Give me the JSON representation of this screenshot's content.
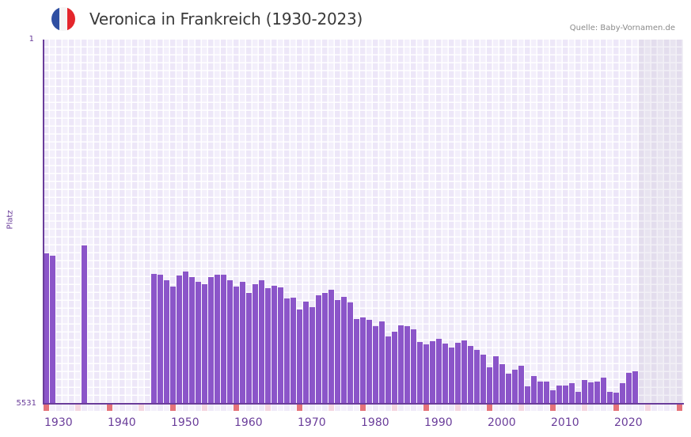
{
  "header": {
    "title": "Veronica in Frankreich (1930-2023)",
    "source": "Quelle: Baby-Vornamen.de",
    "flag_icon": "france-flag-icon",
    "flag_colors": [
      "#2f4fa2",
      "#f5f5f5",
      "#e4262c"
    ]
  },
  "colors": {
    "bar": "#8b55c9",
    "axis": "#6a3d9a",
    "decade_marker": "#e5737a",
    "half_decade_marker": "#f5d6e0"
  },
  "chart_data": {
    "type": "bar",
    "title": "Veronica in Frankreich (1930-2023)",
    "xlabel": "",
    "ylabel": "Platz",
    "ylim": [
      5531,
      1
    ],
    "y_inverted": true,
    "y_ticks": [
      "1",
      "5531"
    ],
    "x_ticks": [
      "1930",
      "1940",
      "1950",
      "1960",
      "1970",
      "1980",
      "1990",
      "2000",
      "2010",
      "2020"
    ],
    "x_range": [
      1930,
      2030
    ],
    "grid": true,
    "legend": "none",
    "series": [
      {
        "name": "Platz",
        "points": [
          {
            "year": 1930,
            "rank": 3247
          },
          {
            "year": 1931,
            "rank": 3283
          },
          {
            "year": 1936,
            "rank": 3127
          },
          {
            "year": 1947,
            "rank": 3560
          },
          {
            "year": 1948,
            "rank": 3572
          },
          {
            "year": 1949,
            "rank": 3656
          },
          {
            "year": 1950,
            "rank": 3752
          },
          {
            "year": 1951,
            "rank": 3584
          },
          {
            "year": 1952,
            "rank": 3523
          },
          {
            "year": 1953,
            "rank": 3608
          },
          {
            "year": 1954,
            "rank": 3680
          },
          {
            "year": 1955,
            "rank": 3716
          },
          {
            "year": 1956,
            "rank": 3608
          },
          {
            "year": 1957,
            "rank": 3572
          },
          {
            "year": 1958,
            "rank": 3572
          },
          {
            "year": 1959,
            "rank": 3656
          },
          {
            "year": 1960,
            "rank": 3752
          },
          {
            "year": 1961,
            "rank": 3680
          },
          {
            "year": 1962,
            "rank": 3848
          },
          {
            "year": 1963,
            "rank": 3716
          },
          {
            "year": 1964,
            "rank": 3656
          },
          {
            "year": 1965,
            "rank": 3776
          },
          {
            "year": 1966,
            "rank": 3740
          },
          {
            "year": 1967,
            "rank": 3764
          },
          {
            "year": 1968,
            "rank": 3932
          },
          {
            "year": 1969,
            "rank": 3920
          },
          {
            "year": 1970,
            "rank": 4100
          },
          {
            "year": 1971,
            "rank": 3980
          },
          {
            "year": 1972,
            "rank": 4064
          },
          {
            "year": 1973,
            "rank": 3884
          },
          {
            "year": 1974,
            "rank": 3848
          },
          {
            "year": 1975,
            "rank": 3800
          },
          {
            "year": 1976,
            "rank": 3956
          },
          {
            "year": 1977,
            "rank": 3908
          },
          {
            "year": 1978,
            "rank": 3992
          },
          {
            "year": 1979,
            "rank": 4245
          },
          {
            "year": 1980,
            "rank": 4221
          },
          {
            "year": 1981,
            "rank": 4257
          },
          {
            "year": 1982,
            "rank": 4353
          },
          {
            "year": 1983,
            "rank": 4281
          },
          {
            "year": 1984,
            "rank": 4509
          },
          {
            "year": 1985,
            "rank": 4437
          },
          {
            "year": 1986,
            "rank": 4341
          },
          {
            "year": 1987,
            "rank": 4353
          },
          {
            "year": 1988,
            "rank": 4401
          },
          {
            "year": 1989,
            "rank": 4593
          },
          {
            "year": 1990,
            "rank": 4629
          },
          {
            "year": 1991,
            "rank": 4581
          },
          {
            "year": 1992,
            "rank": 4545
          },
          {
            "year": 1993,
            "rank": 4617
          },
          {
            "year": 1994,
            "rank": 4678
          },
          {
            "year": 1995,
            "rank": 4605
          },
          {
            "year": 1996,
            "rank": 4569
          },
          {
            "year": 1997,
            "rank": 4653
          },
          {
            "year": 1998,
            "rank": 4714
          },
          {
            "year": 1999,
            "rank": 4786
          },
          {
            "year": 2000,
            "rank": 4978
          },
          {
            "year": 2001,
            "rank": 4810
          },
          {
            "year": 2002,
            "rank": 4930
          },
          {
            "year": 2003,
            "rank": 5074
          },
          {
            "year": 2004,
            "rank": 5014
          },
          {
            "year": 2005,
            "rank": 4954
          },
          {
            "year": 2006,
            "rank": 5267
          },
          {
            "year": 2007,
            "rank": 5110
          },
          {
            "year": 2008,
            "rank": 5194
          },
          {
            "year": 2009,
            "rank": 5194
          },
          {
            "year": 2010,
            "rank": 5327
          },
          {
            "year": 2011,
            "rank": 5255
          },
          {
            "year": 2012,
            "rank": 5255
          },
          {
            "year": 2013,
            "rank": 5219
          },
          {
            "year": 2014,
            "rank": 5351
          },
          {
            "year": 2015,
            "rank": 5170
          },
          {
            "year": 2016,
            "rank": 5207
          },
          {
            "year": 2017,
            "rank": 5194
          },
          {
            "year": 2018,
            "rank": 5134
          },
          {
            "year": 2019,
            "rank": 5351
          },
          {
            "year": 2020,
            "rank": 5363
          },
          {
            "year": 2021,
            "rank": 5219
          },
          {
            "year": 2022,
            "rank": 5062
          },
          {
            "year": 2023,
            "rank": 5038
          }
        ]
      }
    ],
    "future_region": {
      "from": 2024,
      "to": 2030
    }
  }
}
